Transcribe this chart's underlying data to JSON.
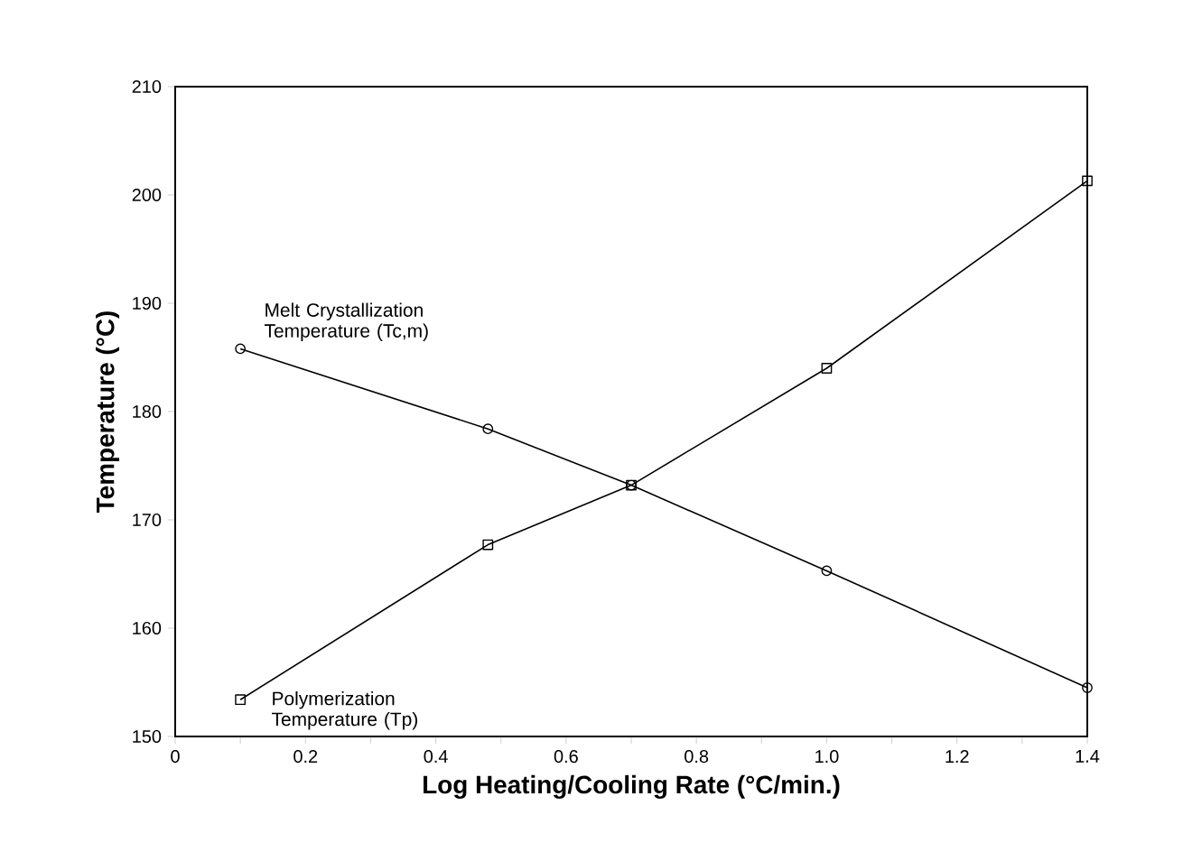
{
  "chart_data": {
    "type": "line",
    "xlabel": "Log Heating/Cooling Rate (°C/min.)",
    "ylabel": "Temperature (°C)",
    "xlim": [
      0,
      1.4
    ],
    "ylim": [
      150,
      210
    ],
    "xticks": [
      0,
      {
        "value": 0.1,
        "label": null
      },
      0.2,
      {
        "value": 0.3,
        "label": null
      },
      0.4,
      {
        "value": 0.5,
        "label": null
      },
      0.6,
      {
        "value": 0.7,
        "label": null
      },
      0.8,
      {
        "value": 0.9,
        "label": null
      },
      {
        "value": 1,
        "label": "1.0"
      },
      {
        "value": 1.1,
        "label": null
      },
      1.2,
      {
        "value": 1.3,
        "label": null
      },
      1.4
    ],
    "yticks": [
      150,
      160,
      170,
      180,
      190,
      200,
      210
    ],
    "grid": false,
    "line_style": "solid",
    "series": [
      {
        "name": "Melt Crystallization Temperature (Tc,m)",
        "color": "#000000",
        "marker": "circle",
        "x": [
          0.1,
          0.48,
          0.7,
          1.0,
          1.4
        ],
        "values": [
          185.8,
          178.4,
          173.2,
          165.3,
          154.5
        ]
      },
      {
        "name": "Polymerization Temperature (Tp)",
        "color": "#000000",
        "marker": "square",
        "x": [
          0.1,
          0.48,
          0.7,
          1.0,
          1.4
        ],
        "values": [
          153.4,
          167.7,
          173.2,
          184.0,
          201.3
        ]
      }
    ]
  }
}
